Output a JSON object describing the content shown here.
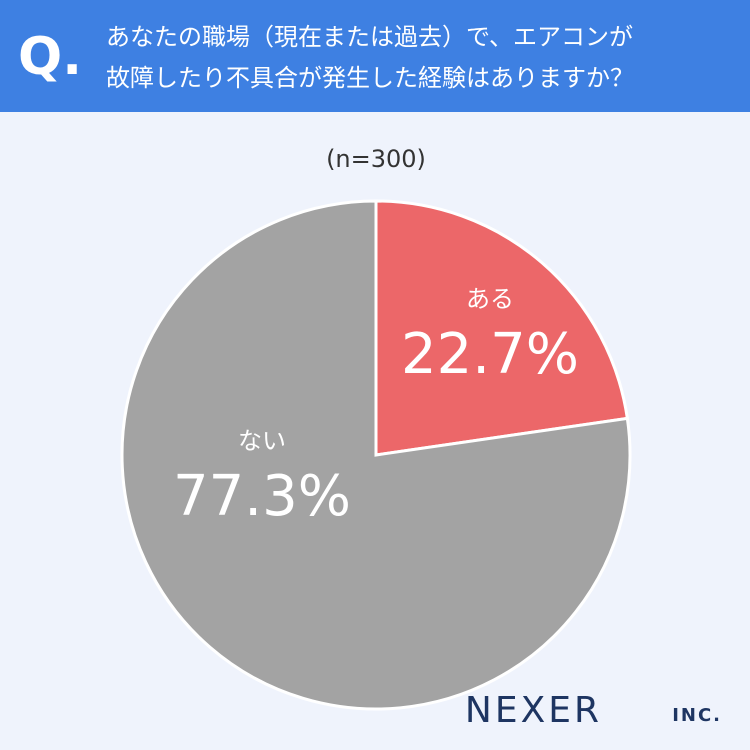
{
  "header": {
    "q_mark": "Q.",
    "title_lines": [
      "あなたの職場（現在または過去）で、エアコンが",
      "故障したり不具合が発生した経験はありますか？"
    ]
  },
  "chart_data": {
    "type": "pie",
    "subtitle": "(n=300)",
    "categories": [
      "ある",
      "ない"
    ],
    "values": [
      22.7,
      77.3
    ],
    "value_labels": [
      "22.7%",
      "77.3%"
    ],
    "colors": [
      "#ec6769",
      "#a3a3a3"
    ]
  },
  "logo": {
    "name": "NEXER",
    "suffix": "INC."
  }
}
